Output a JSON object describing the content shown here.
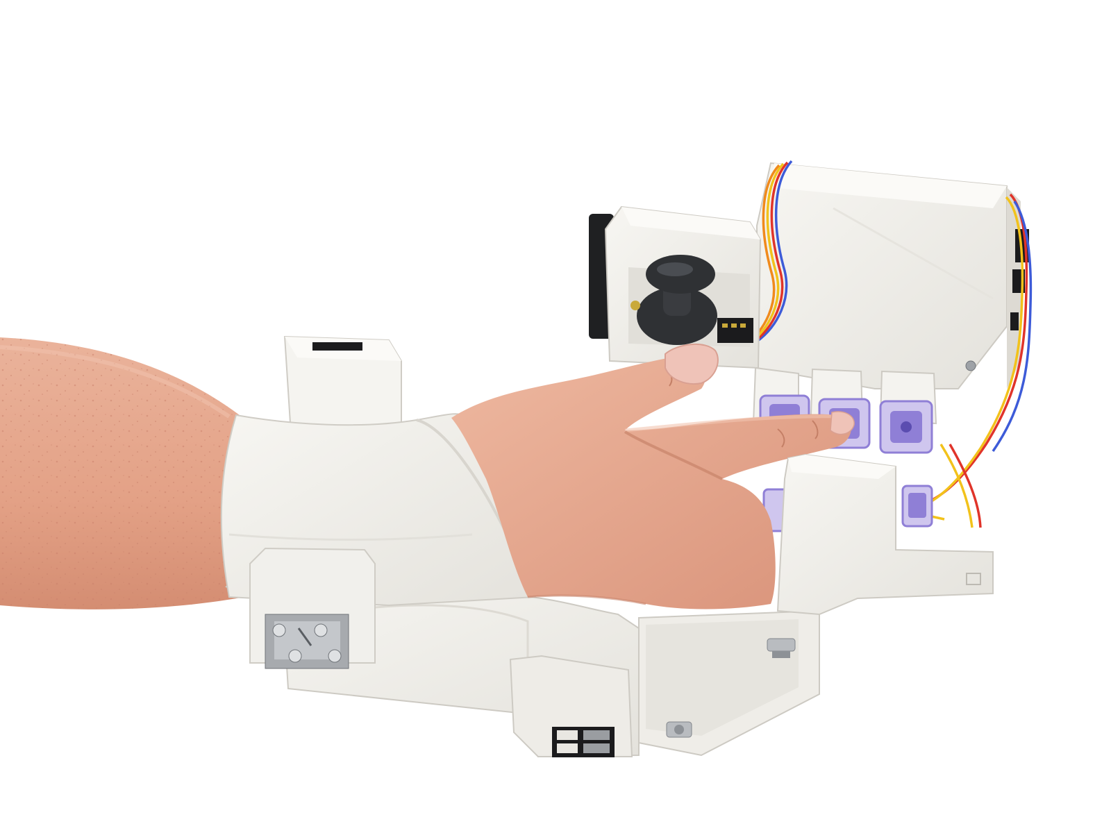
{
  "scene": {
    "background": "#ffffff",
    "colors": {
      "skin": "#e9ab92",
      "skin_shadow": "#d48d72",
      "nail": "#efc3b8",
      "plastic": "#f3f2ee",
      "plastic_shade": "#e1dfd9",
      "plastic_edge": "#c9c6bf",
      "joystick": "#2f3134",
      "button_purple": "#8f7fd6",
      "button_frame": "#cfc6ee",
      "wire_blue": "#3d5bd8",
      "wire_red": "#e0342a",
      "wire_yellow": "#f2c21b",
      "wire_orange": "#f08a1c",
      "metal": "#b9bcc0",
      "connector": "#1b1b1d"
    },
    "objects": [
      "forearm",
      "hand",
      "wrist-cuff",
      "palm-housing",
      "joystick",
      "push-buttons",
      "wiring",
      "connectors"
    ]
  }
}
